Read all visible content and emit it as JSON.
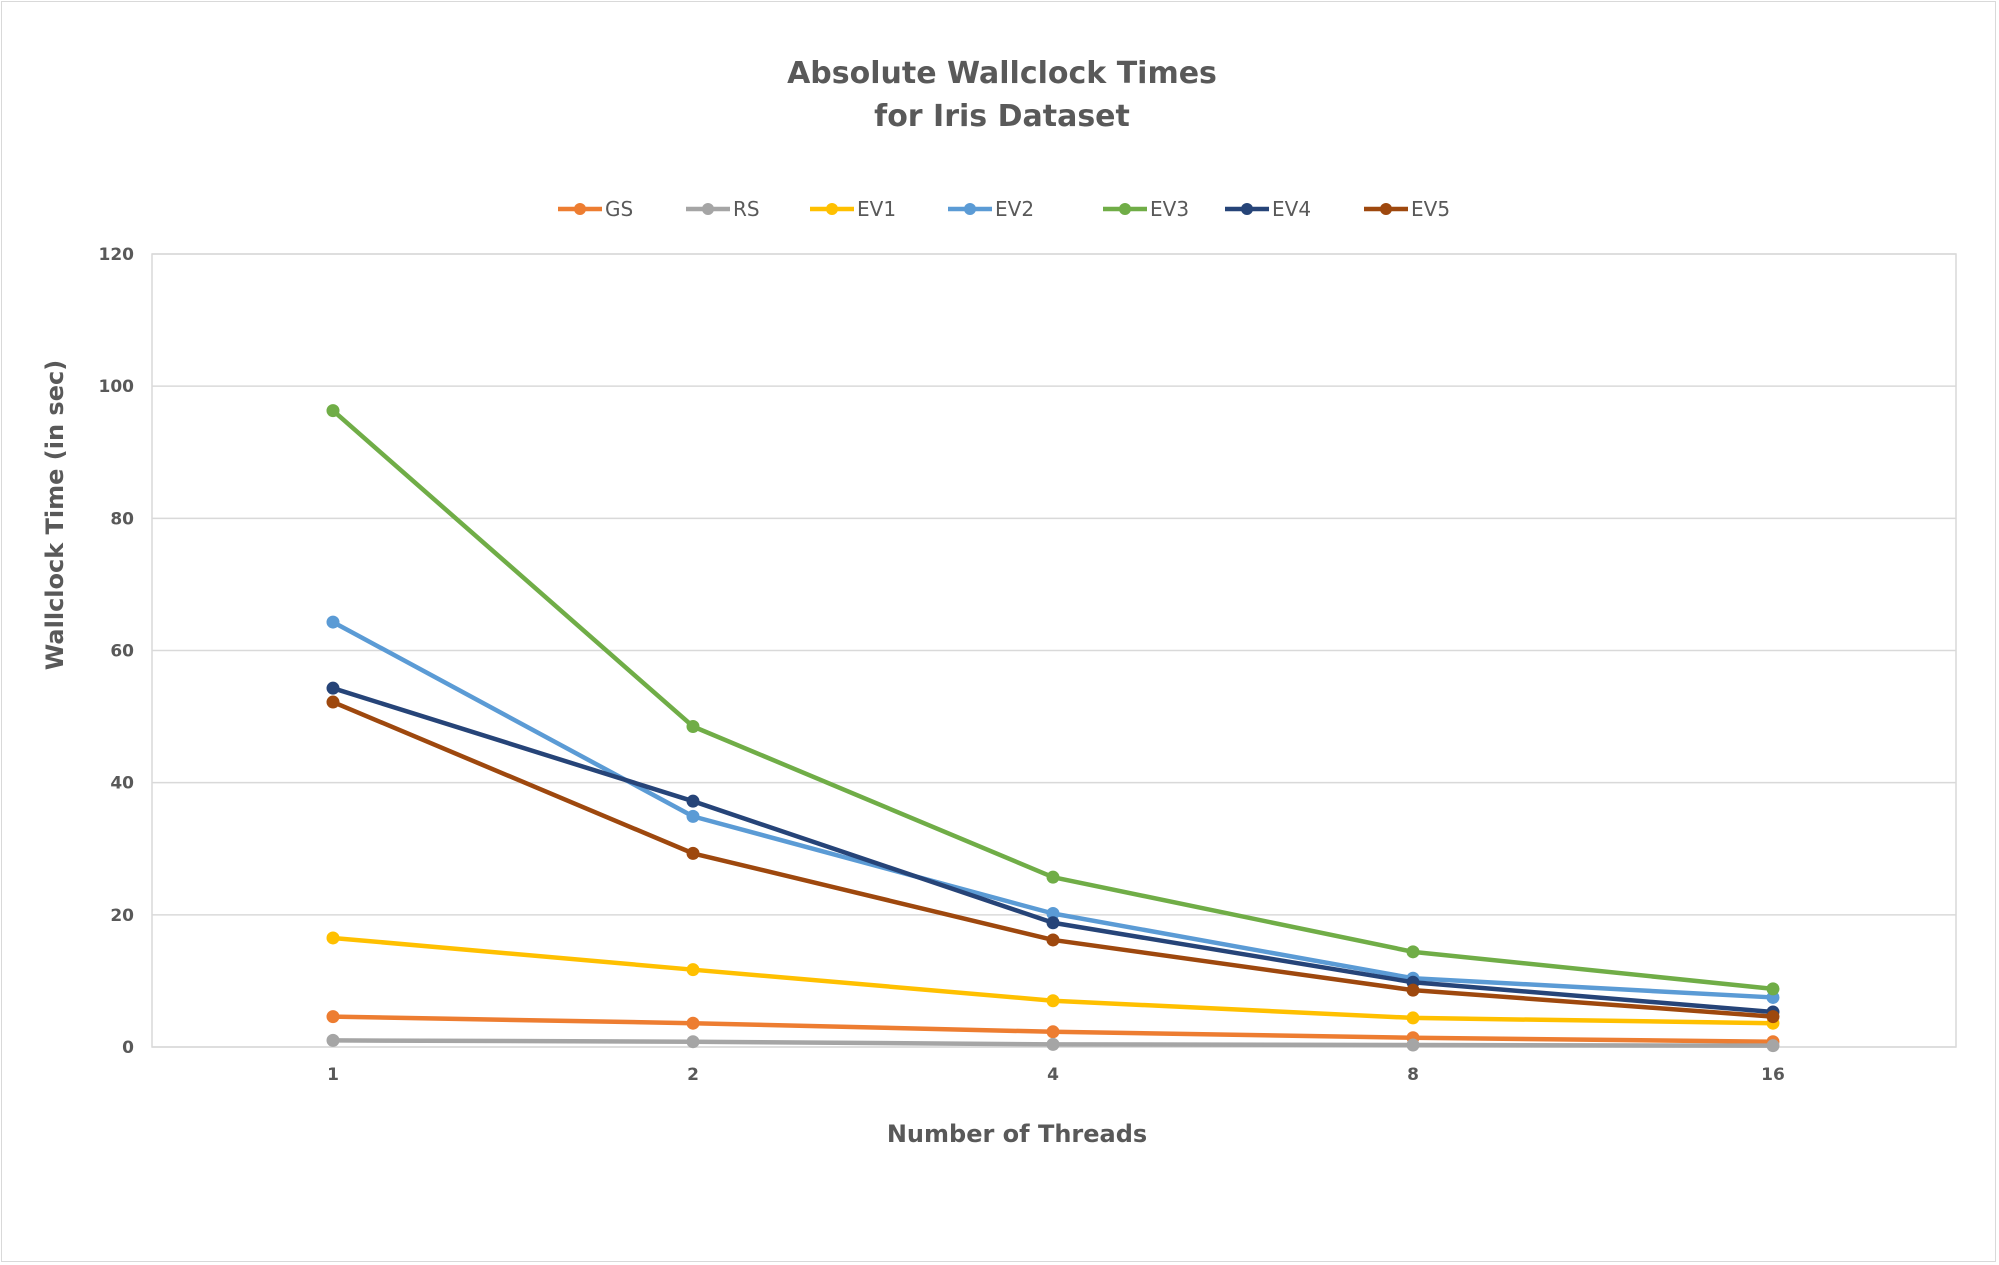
{
  "chart_data": {
    "type": "line",
    "title": [
      "Absolute Wallclock Times",
      "for Iris Dataset"
    ],
    "xlabel": "Number of Threads",
    "ylabel": "Wallclock Time (in sec)",
    "categories": [
      "1",
      "2",
      "4",
      "8",
      "16"
    ],
    "ylim": [
      0,
      120
    ],
    "yticks": [
      "0",
      "20",
      "40",
      "60",
      "80",
      "100",
      "120"
    ],
    "grid": true,
    "legend_position": "top",
    "series": [
      {
        "name": "GS",
        "color": "#ED7D31",
        "values": [
          4.6,
          3.6,
          2.3,
          1.4,
          0.8
        ]
      },
      {
        "name": "RS",
        "color": "#A5A5A5",
        "values": [
          1.0,
          0.8,
          0.4,
          0.3,
          0.2
        ]
      },
      {
        "name": "EV1",
        "color": "#FFC000",
        "values": [
          16.5,
          11.7,
          7.0,
          4.4,
          3.6
        ]
      },
      {
        "name": "EV2",
        "color": "#5B9BD5",
        "values": [
          64.3,
          34.9,
          20.2,
          10.4,
          7.5
        ]
      },
      {
        "name": "EV3",
        "color": "#70AD47",
        "values": [
          96.3,
          48.5,
          25.7,
          14.4,
          8.8
        ]
      },
      {
        "name": "EV4",
        "color": "#264478",
        "values": [
          54.3,
          37.2,
          18.8,
          9.8,
          5.3
        ]
      },
      {
        "name": "EV5",
        "color": "#9E480E",
        "values": [
          52.2,
          29.3,
          16.2,
          8.6,
          4.6
        ]
      }
    ]
  }
}
